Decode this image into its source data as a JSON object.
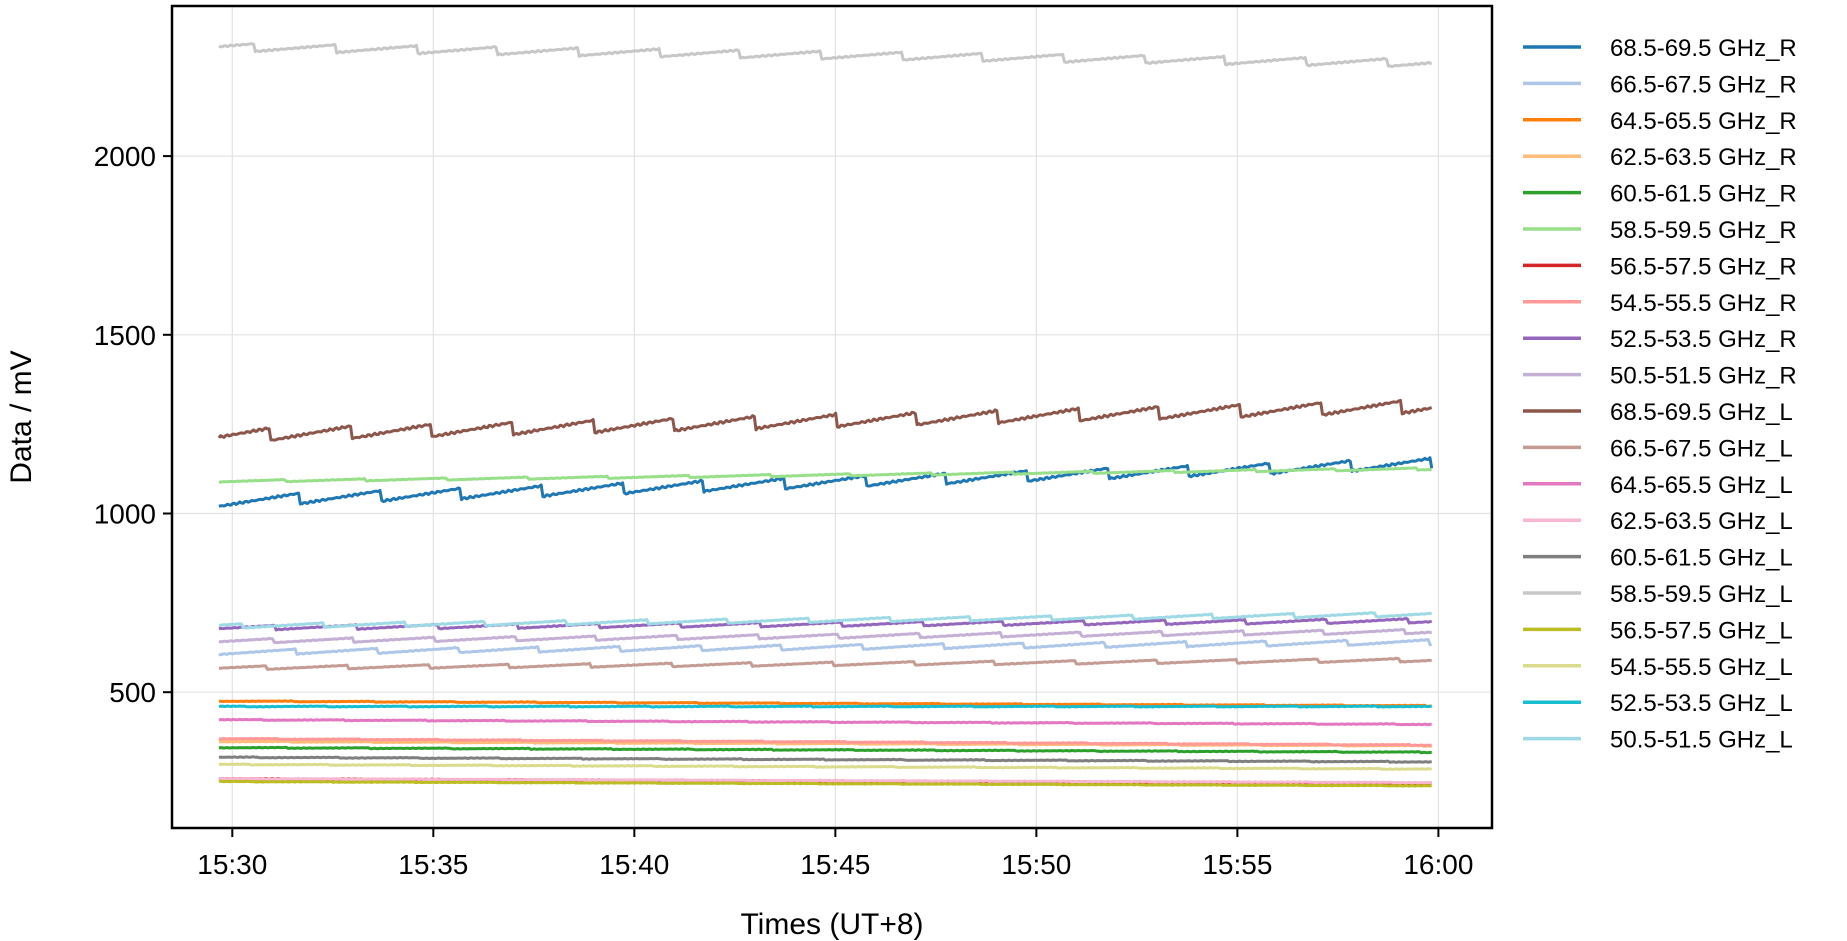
{
  "chart_data": {
    "type": "line",
    "xlabel": "Times (UT+8)",
    "ylabel": "Data / mV",
    "x_range": [
      "15:29:40",
      "15:59:50"
    ],
    "xlim": [
      "15:28:30",
      "16:01:20"
    ],
    "ylim": [
      120,
      2420
    ],
    "x_ticks": [
      "15:30",
      "15:35",
      "15:40",
      "15:45",
      "15:50",
      "15:55",
      "16:00"
    ],
    "y_ticks": [
      500,
      1000,
      1500,
      2000
    ],
    "grid": true,
    "legend_position": "outside-right",
    "series": [
      {
        "name": "68.5-69.5 GHz_R",
        "color": "#1f77b4",
        "start": 1035,
        "end": 1140,
        "sawtooth": 30
      },
      {
        "name": "66.5-67.5 GHz_R",
        "color": "#aec7e8",
        "start": 612,
        "end": 640,
        "sawtooth": 14
      },
      {
        "name": "64.5-65.5 GHz_R",
        "color": "#ff7f0e",
        "start": 475,
        "end": 462,
        "sawtooth": 2
      },
      {
        "name": "62.5-63.5 GHz_R",
        "color": "#ffbb78",
        "start": 362,
        "end": 350,
        "sawtooth": 2
      },
      {
        "name": "60.5-61.5 GHz_R",
        "color": "#2ca02c",
        "start": 345,
        "end": 332,
        "sawtooth": 2
      },
      {
        "name": "58.5-59.5 GHz_R",
        "color": "#98df8a",
        "start": 1090,
        "end": 1125,
        "sawtooth": 6
      },
      {
        "name": "56.5-57.5 GHz_R",
        "color": "#d62728",
        "start": 258,
        "end": 245,
        "sawtooth": 1
      },
      {
        "name": "54.5-55.5 GHz_R",
        "color": "#ff9896",
        "start": 370,
        "end": 352,
        "sawtooth": 2
      },
      {
        "name": "52.5-53.5 GHz_R",
        "color": "#9467bd",
        "start": 680,
        "end": 700,
        "sawtooth": 12
      },
      {
        "name": "50.5-51.5 GHz_R",
        "color": "#c5b0d5",
        "start": 643,
        "end": 670,
        "sawtooth": 12
      },
      {
        "name": "68.5-69.5 GHz_L",
        "color": "#8c564b",
        "start": 1218,
        "end": 1300,
        "sawtooth": 35
      },
      {
        "name": "66.5-67.5 GHz_L",
        "color": "#c49c94",
        "start": 568,
        "end": 590,
        "sawtooth": 10
      },
      {
        "name": "64.5-65.5 GHz_L",
        "color": "#e377c2",
        "start": 423,
        "end": 410,
        "sawtooth": 2
      },
      {
        "name": "62.5-63.5 GHz_L",
        "color": "#f7b6d2",
        "start": 258,
        "end": 247,
        "sawtooth": 1
      },
      {
        "name": "60.5-61.5 GHz_L",
        "color": "#7f7f7f",
        "start": 318,
        "end": 305,
        "sawtooth": 2
      },
      {
        "name": "58.5-59.5 GHz_L",
        "color": "#c7c7c7",
        "start": 2305,
        "end": 2260,
        "sawtooth": 22
      },
      {
        "name": "56.5-57.5 GHz_L",
        "color": "#bcbd22",
        "start": 250,
        "end": 238,
        "sawtooth": 1
      },
      {
        "name": "54.5-55.5 GHz_L",
        "color": "#dbdb8d",
        "start": 298,
        "end": 285,
        "sawtooth": 2
      },
      {
        "name": "52.5-53.5 GHz_L",
        "color": "#17becf",
        "start": 460,
        "end": 460,
        "sawtooth": 2
      },
      {
        "name": "50.5-51.5 GHz_L",
        "color": "#9edae5",
        "start": 685,
        "end": 718,
        "sawtooth": 12
      }
    ]
  }
}
